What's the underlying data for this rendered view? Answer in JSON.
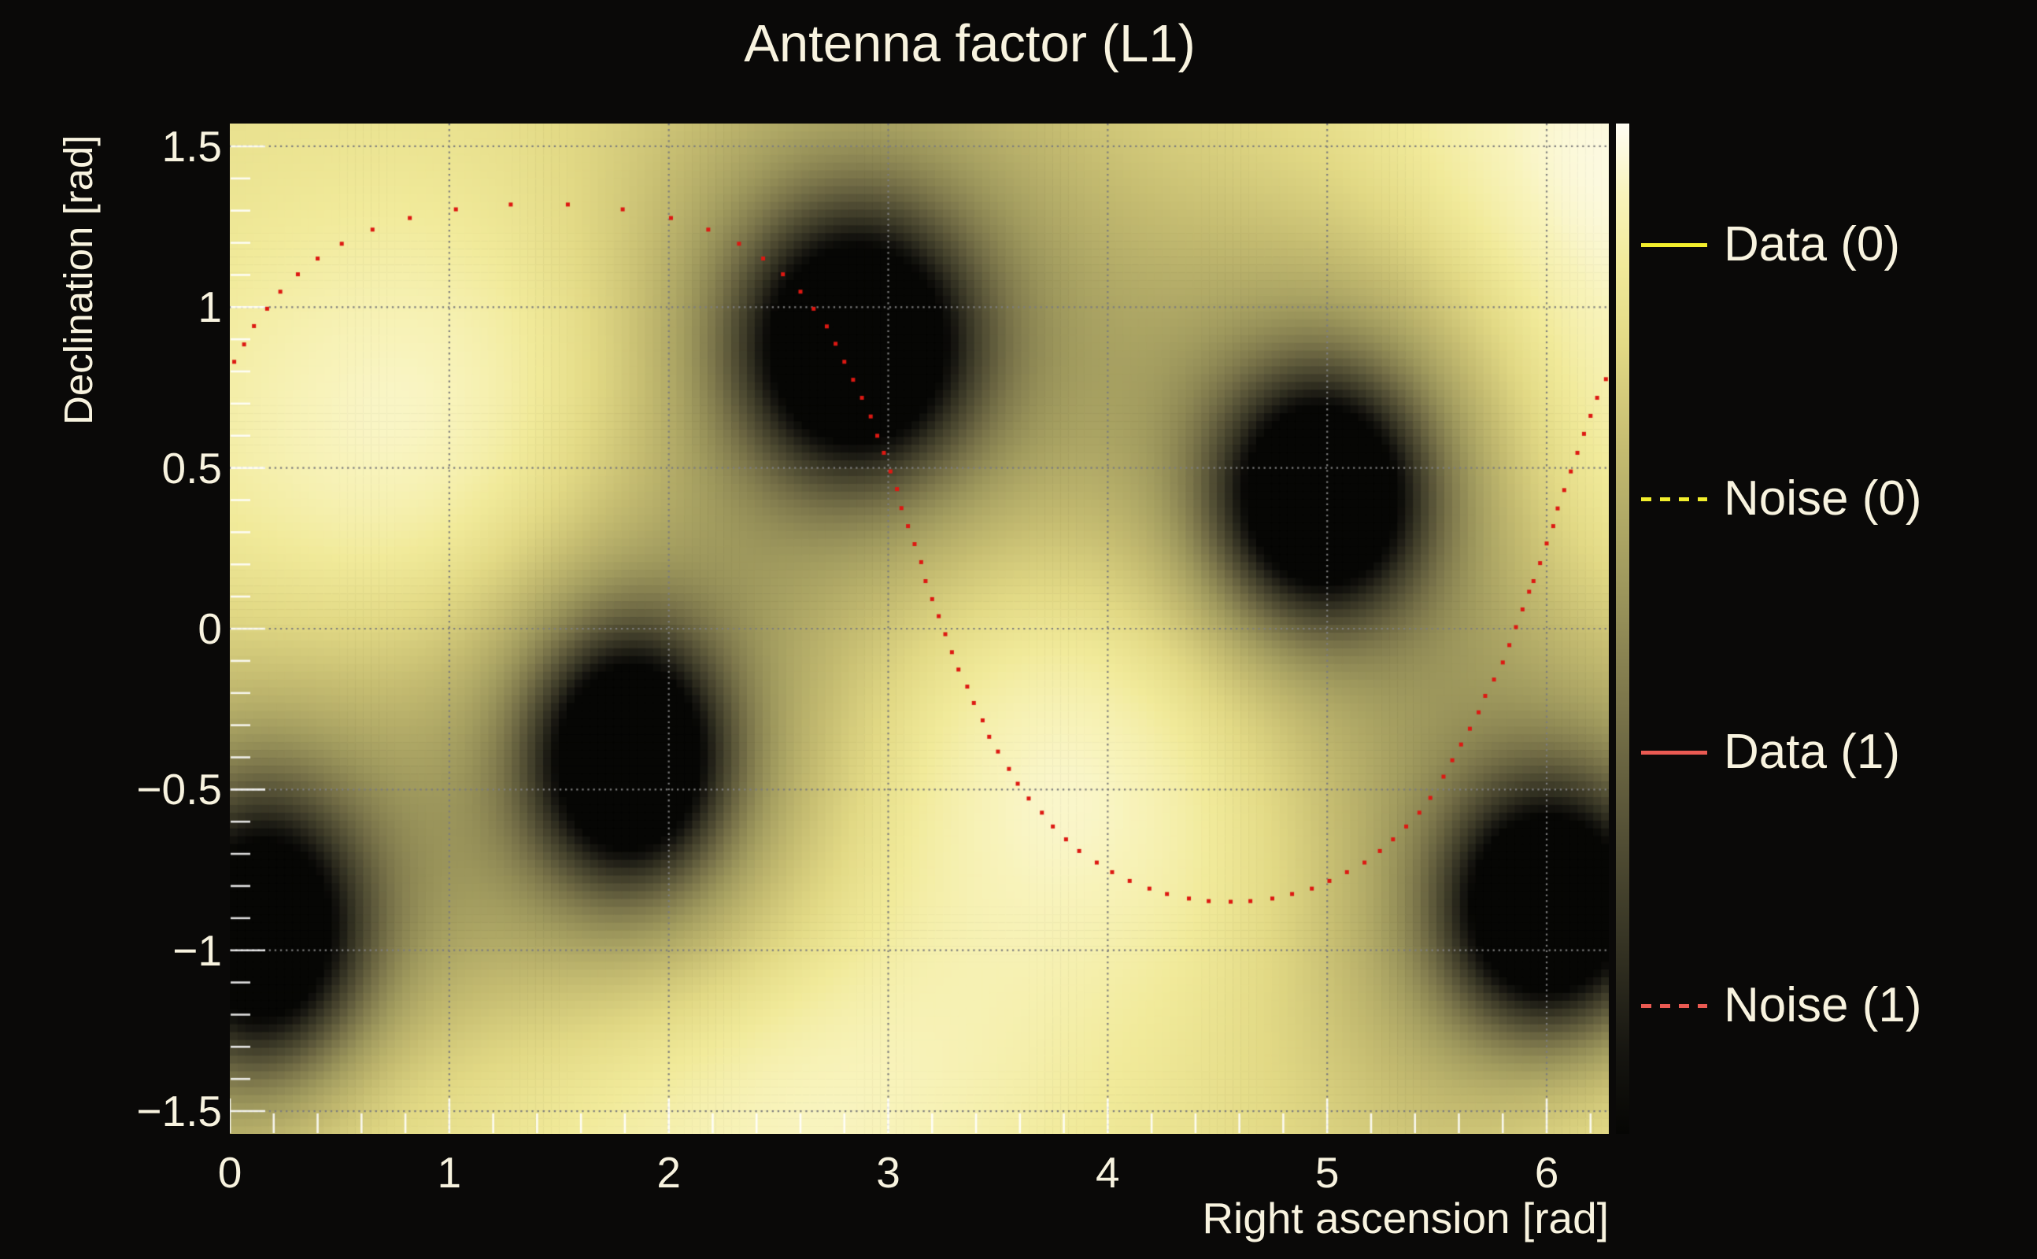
{
  "title": "Antenna factor (L1)",
  "colors": {
    "page_background": "#0a0908",
    "text": "#f8f3df",
    "grid": "#7d7d7d",
    "tick": "#ffffff",
    "series_yellow": "#f2ee2c",
    "series_red": "#ea5a52",
    "noise_dot_red": "#dd1812"
  },
  "axes": {
    "x": {
      "label": "Right ascension [rad]",
      "range": [
        0,
        6.2832
      ],
      "major_ticks": [
        0,
        1,
        2,
        3,
        4,
        5,
        6
      ],
      "major_tick_labels": [
        "0",
        "1",
        "2",
        "3",
        "4",
        "5",
        "6"
      ],
      "minor_tick_step": 0.2,
      "gridlines": [
        1,
        2,
        3,
        4,
        5,
        6
      ]
    },
    "y": {
      "label": "Declination [rad]",
      "range": [
        -1.5708,
        1.5708
      ],
      "major_ticks": [
        1.5,
        1,
        0.5,
        0,
        -0.5,
        -1,
        -1.5
      ],
      "major_tick_labels": [
        "1.5",
        "1",
        "0.5",
        "0",
        "−0.5",
        "−1",
        "−1.5"
      ],
      "minor_tick_step": 0.1,
      "gridlines": [
        1.5,
        1,
        0.5,
        0,
        -0.5,
        -1,
        -1.5
      ]
    }
  },
  "legend": {
    "items": [
      {
        "label": "Data (0)",
        "color": "#f2ee2c",
        "line_style": "solid"
      },
      {
        "label": "Noise (0)",
        "color": "#f2ee2c",
        "line_style": "dashed"
      },
      {
        "label": "Data (1)",
        "color": "#ea5a52",
        "line_style": "solid"
      },
      {
        "label": "Noise (1)",
        "color": "#ea5a52",
        "line_style": "dashed"
      }
    ]
  },
  "colorbar": {
    "position": "right",
    "value_range": [
      0,
      1
    ],
    "stops": [
      [
        0.0,
        "#060604"
      ],
      [
        0.08,
        "#161510"
      ],
      [
        0.18,
        "#333122"
      ],
      [
        0.3,
        "#555136"
      ],
      [
        0.42,
        "#7a744a"
      ],
      [
        0.55,
        "#a09a5e"
      ],
      [
        0.68,
        "#c5bc71"
      ],
      [
        0.78,
        "#e2d985"
      ],
      [
        0.86,
        "#f1ea9a"
      ],
      [
        0.93,
        "#f8f3bb"
      ],
      [
        0.97,
        "#fcf9dc"
      ],
      [
        1.0,
        "#fffdf4"
      ]
    ]
  },
  "chart_data": {
    "type": "heatmap",
    "title": "Antenna factor (L1)",
    "xlabel": "Right ascension [rad]",
    "ylabel": "Declination [rad]",
    "xlim": [
      0,
      6.2832
    ],
    "ylim": [
      -1.5708,
      1.5708
    ],
    "grid": true,
    "grid_style": "dotted",
    "bins": {
      "nx": 176,
      "ny": 129
    },
    "field_model": {
      "comment_base_level": 0.8,
      "base": 0.8,
      "gaussians": [
        {
          "ra": 1.15,
          "dec": 0.55,
          "amp": 0.2,
          "sigma_ra": 1.0,
          "sigma_dec": 0.55
        },
        {
          "ra": 3.95,
          "dec": -0.3,
          "amp": 0.2,
          "sigma_ra": 0.85,
          "sigma_dec": 0.55
        },
        {
          "ra": 2.3,
          "dec": -1.45,
          "amp": 0.17,
          "sigma_ra": 1.0,
          "sigma_dec": 0.45
        },
        {
          "ra": 6.25,
          "dec": 1.5,
          "amp": 0.17,
          "sigma_ra": 0.8,
          "sigma_dec": 0.45
        },
        {
          "ra": 6.3,
          "dec": 0.55,
          "amp": 0.13,
          "sigma_ra": 0.45,
          "sigma_dec": 0.45
        },
        {
          "ra": 0.4,
          "dec": -1.5,
          "amp": 0.12,
          "sigma_ra": 0.5,
          "sigma_dec": 0.3
        },
        {
          "ra": 6.3,
          "dec": -1.5,
          "amp": 0.15,
          "sigma_ra": 0.5,
          "sigma_dec": 0.35
        },
        {
          "ra": 2.85,
          "dec": 0.88,
          "amp": -0.95,
          "sigma_ra": 0.34,
          "sigma_dec": 0.26
        },
        {
          "ra": 2.85,
          "dec": 0.88,
          "amp": -0.4,
          "sigma_ra": 0.8,
          "sigma_dec": 0.6
        },
        {
          "ra": 4.97,
          "dec": 0.41,
          "amp": -0.95,
          "sigma_ra": 0.3,
          "sigma_dec": 0.24
        },
        {
          "ra": 4.97,
          "dec": 0.41,
          "amp": -0.38,
          "sigma_ra": 0.7,
          "sigma_dec": 0.55
        },
        {
          "ra": 1.82,
          "dec": -0.4,
          "amp": -0.95,
          "sigma_ra": 0.28,
          "sigma_dec": 0.25
        },
        {
          "ra": 1.82,
          "dec": -0.4,
          "amp": -0.38,
          "sigma_ra": 0.65,
          "sigma_dec": 0.6
        },
        {
          "ra": 6.01,
          "dec": -0.87,
          "amp": -0.95,
          "sigma_ra": 0.3,
          "sigma_dec": 0.24
        },
        {
          "ra": 6.01,
          "dec": -0.87,
          "amp": -0.38,
          "sigma_ra": 0.7,
          "sigma_dec": 0.55
        },
        {
          "ra": 0.15,
          "dec": -0.95,
          "amp": -0.85,
          "sigma_ra": 0.3,
          "sigma_dec": 0.28
        },
        {
          "ra": 0.15,
          "dec": -0.95,
          "amp": -0.35,
          "sigma_ra": 0.65,
          "sigma_dec": 0.6
        }
      ],
      "dark_blob_centers": [
        {
          "ra": 2.85,
          "dec": 0.88
        },
        {
          "ra": 4.97,
          "dec": 0.41
        },
        {
          "ra": 1.82,
          "dec": -0.4
        },
        {
          "ra": 6.01,
          "dec": -0.87
        },
        {
          "ra": 0.15,
          "dec": -0.95
        }
      ]
    },
    "series": [
      {
        "name": "Data (0)",
        "color": "#f2ee2c",
        "line_style": "solid",
        "visible_in_plot": false
      },
      {
        "name": "Noise (0)",
        "color": "#f2ee2c",
        "line_style": "dashed",
        "visible_in_plot": false
      },
      {
        "name": "Data (1)",
        "color": "#ea5a52",
        "line_style": "solid",
        "visible_in_plot": false
      },
      {
        "name": "Noise (1)",
        "color": "#dd1812",
        "line_style": "dotted-markers",
        "visible_in_plot": true,
        "points": [
          [
            0.02,
            0.83
          ],
          [
            0.065,
            0.884
          ],
          [
            0.11,
            0.941
          ],
          [
            0.17,
            0.995
          ],
          [
            0.23,
            1.048
          ],
          [
            0.31,
            1.102
          ],
          [
            0.4,
            1.151
          ],
          [
            0.51,
            1.197
          ],
          [
            0.65,
            1.241
          ],
          [
            0.82,
            1.277
          ],
          [
            1.03,
            1.304
          ],
          [
            1.28,
            1.319
          ],
          [
            1.54,
            1.319
          ],
          [
            1.79,
            1.304
          ],
          [
            2.01,
            1.277
          ],
          [
            2.18,
            1.241
          ],
          [
            2.32,
            1.197
          ],
          [
            2.43,
            1.151
          ],
          [
            2.52,
            1.102
          ],
          [
            2.6,
            1.048
          ],
          [
            2.66,
            0.995
          ],
          [
            2.72,
            0.94
          ],
          [
            2.76,
            0.886
          ],
          [
            2.8,
            0.83
          ],
          [
            2.84,
            0.774
          ],
          [
            2.88,
            0.718
          ],
          [
            2.92,
            0.66
          ],
          [
            2.95,
            0.6
          ],
          [
            2.98,
            0.547
          ],
          [
            3.01,
            0.489
          ],
          [
            3.04,
            0.434
          ],
          [
            3.06,
            0.375
          ],
          [
            3.09,
            0.319
          ],
          [
            3.12,
            0.263
          ],
          [
            3.15,
            0.207
          ],
          [
            3.17,
            0.148
          ],
          [
            3.2,
            0.092
          ],
          [
            3.23,
            0.039
          ],
          [
            3.26,
            -0.017
          ],
          [
            3.29,
            -0.073
          ],
          [
            3.32,
            -0.127
          ],
          [
            3.36,
            -0.18
          ],
          [
            3.39,
            -0.231
          ],
          [
            3.43,
            -0.285
          ],
          [
            3.46,
            -0.336
          ],
          [
            3.5,
            -0.382
          ],
          [
            3.55,
            -0.436
          ],
          [
            3.59,
            -0.482
          ],
          [
            3.64,
            -0.528
          ],
          [
            3.7,
            -0.572
          ],
          [
            3.75,
            -0.615
          ],
          [
            3.81,
            -0.655
          ],
          [
            3.87,
            -0.691
          ],
          [
            3.95,
            -0.727
          ],
          [
            4.02,
            -0.757
          ],
          [
            4.1,
            -0.784
          ],
          [
            4.19,
            -0.808
          ],
          [
            4.27,
            -0.825
          ],
          [
            4.37,
            -0.839
          ],
          [
            4.46,
            -0.847
          ],
          [
            4.56,
            -0.849
          ],
          [
            4.65,
            -0.847
          ],
          [
            4.75,
            -0.839
          ],
          [
            4.84,
            -0.825
          ],
          [
            4.93,
            -0.808
          ],
          [
            5.01,
            -0.784
          ],
          [
            5.09,
            -0.757
          ],
          [
            5.17,
            -0.727
          ],
          [
            5.24,
            -0.691
          ],
          [
            5.3,
            -0.655
          ],
          [
            5.36,
            -0.615
          ],
          [
            5.42,
            -0.572
          ],
          [
            5.47,
            -0.526
          ],
          [
            5.53,
            -0.46
          ],
          [
            5.57,
            -0.409
          ],
          [
            5.61,
            -0.36
          ],
          [
            5.65,
            -0.311
          ],
          [
            5.69,
            -0.26
          ],
          [
            5.72,
            -0.209
          ],
          [
            5.76,
            -0.158
          ],
          [
            5.8,
            -0.105
          ],
          [
            5.83,
            -0.051
          ],
          [
            5.86,
            0.005
          ],
          [
            5.89,
            0.06
          ],
          [
            5.92,
            0.115
          ],
          [
            5.94,
            0.148
          ],
          [
            5.97,
            0.204
          ],
          [
            6.0,
            0.265
          ],
          [
            6.03,
            0.319
          ],
          [
            6.05,
            0.374
          ],
          [
            6.08,
            0.431
          ],
          [
            6.11,
            0.489
          ],
          [
            6.14,
            0.547
          ],
          [
            6.17,
            0.606
          ],
          [
            6.2,
            0.662
          ],
          [
            6.23,
            0.718
          ],
          [
            6.27,
            0.776
          ]
        ]
      }
    ],
    "colormap_stops": [
      [
        0.0,
        "#060604"
      ],
      [
        0.08,
        "#161510"
      ],
      [
        0.18,
        "#333122"
      ],
      [
        0.3,
        "#555136"
      ],
      [
        0.42,
        "#7a744a"
      ],
      [
        0.55,
        "#a09a5e"
      ],
      [
        0.68,
        "#c5bc71"
      ],
      [
        0.78,
        "#e2d985"
      ],
      [
        0.86,
        "#f1ea9a"
      ],
      [
        0.93,
        "#f8f3bb"
      ],
      [
        0.97,
        "#fcf9dc"
      ],
      [
        1.0,
        "#fffdf4"
      ]
    ],
    "legend_position": "right"
  }
}
